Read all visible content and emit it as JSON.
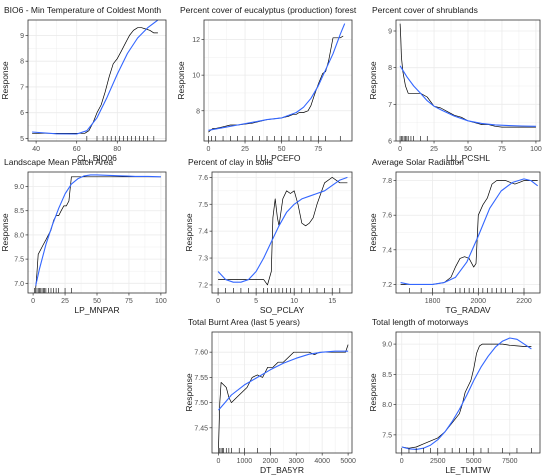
{
  "figure": {
    "y_axis_label": "Response",
    "colors": {
      "panel_border": "#333333",
      "grid": "#ebebeb",
      "observed_line": "#000000",
      "smooth_line": "#3366ff",
      "rug": "#000000",
      "tick_text": "#4d4d4d"
    }
  },
  "chart_data": [
    {
      "type": "line",
      "title": "BIO6 - Min Temperature of Coldest Month",
      "xlabel": "CL_BIO06",
      "ylabel": "Response",
      "xlim": [
        36,
        104
      ],
      "ylim": [
        4.9,
        9.6
      ],
      "xticks": [
        40,
        60,
        80
      ],
      "yticks": [
        5,
        6,
        7,
        8,
        9
      ],
      "grid": true,
      "series": [
        {
          "role": "observed",
          "x": [
            38,
            50,
            60,
            64,
            66,
            68,
            70,
            72,
            74,
            76,
            78,
            80,
            82,
            84,
            86,
            88,
            90,
            92,
            94,
            96,
            98,
            100
          ],
          "y": [
            5.2,
            5.2,
            5.2,
            5.2,
            5.3,
            5.6,
            6.0,
            6.3,
            6.8,
            7.4,
            7.9,
            8.1,
            8.4,
            8.7,
            9.0,
            9.2,
            9.3,
            9.3,
            9.25,
            9.2,
            9.1,
            9.1
          ]
        },
        {
          "role": "smooth",
          "x": [
            38,
            50,
            60,
            65,
            70,
            75,
            80,
            85,
            90,
            95,
            100
          ],
          "y": [
            5.25,
            5.18,
            5.17,
            5.3,
            5.8,
            6.6,
            7.5,
            8.3,
            8.9,
            9.3,
            9.6
          ]
        }
      ],
      "rug": [
        65,
        70,
        73,
        75,
        77,
        79,
        81,
        83,
        85,
        87,
        89,
        91,
        93,
        95,
        98
      ]
    },
    {
      "type": "line",
      "title": "Percent cover of eucalyptus (production) forest",
      "xlabel": "LU_PCEFO",
      "ylabel": "Response",
      "xlim": [
        -3,
        98
      ],
      "ylim": [
        6.3,
        13.1
      ],
      "xticks": [
        0,
        25,
        50,
        75
      ],
      "yticks": [
        8,
        10,
        12
      ],
      "grid": true,
      "series": [
        {
          "role": "observed",
          "x": [
            0,
            3,
            5,
            10,
            15,
            20,
            30,
            40,
            50,
            55,
            58,
            60,
            62,
            65,
            68,
            70,
            72,
            75,
            78,
            80,
            82,
            85,
            88,
            90,
            92
          ],
          "y": [
            6.8,
            7.0,
            7.0,
            7.1,
            7.2,
            7.2,
            7.3,
            7.5,
            7.6,
            7.7,
            7.8,
            7.8,
            7.9,
            7.9,
            8.0,
            8.3,
            8.8,
            9.5,
            10.1,
            10.2,
            10.8,
            12.1,
            12.1,
            12.1,
            12.2
          ]
        },
        {
          "role": "smooth",
          "x": [
            0,
            10,
            20,
            30,
            40,
            50,
            60,
            65,
            70,
            75,
            80,
            85,
            90,
            93
          ],
          "y": [
            6.9,
            7.05,
            7.2,
            7.35,
            7.5,
            7.6,
            7.9,
            8.2,
            8.7,
            9.4,
            10.3,
            11.2,
            12.3,
            12.9
          ]
        }
      ],
      "rug": [
        0,
        2,
        5,
        10,
        15,
        20,
        25,
        30,
        35,
        40,
        45,
        50,
        55,
        60,
        65,
        70,
        75,
        80,
        90
      ]
    },
    {
      "type": "line",
      "title": "Percent cover of shrublands",
      "xlabel": "LU_PCSHL",
      "ylabel": "Response",
      "xlim": [
        -3,
        103
      ],
      "ylim": [
        6.0,
        9.3
      ],
      "xticks": [
        0,
        25,
        50,
        75,
        100
      ],
      "yticks": [
        6,
        7,
        8,
        9
      ],
      "grid": true,
      "series": [
        {
          "role": "observed",
          "x": [
            0,
            0.5,
            1,
            2,
            4,
            6,
            8,
            10,
            15,
            20,
            25,
            30,
            35,
            40,
            45,
            50,
            55,
            60,
            65,
            70,
            75,
            80,
            85,
            90,
            95,
            100
          ],
          "y": [
            9.2,
            8.8,
            8.3,
            7.9,
            7.5,
            7.3,
            7.3,
            7.3,
            7.3,
            7.2,
            6.95,
            6.9,
            6.8,
            6.7,
            6.65,
            6.55,
            6.5,
            6.45,
            6.45,
            6.4,
            6.38,
            6.38,
            6.38,
            6.38,
            6.38,
            6.38
          ]
        },
        {
          "role": "smooth",
          "x": [
            0,
            5,
            10,
            15,
            20,
            25,
            30,
            40,
            50,
            60,
            70,
            80,
            90,
            100
          ],
          "y": [
            8.05,
            7.75,
            7.5,
            7.3,
            7.1,
            6.95,
            6.85,
            6.68,
            6.55,
            6.48,
            6.44,
            6.42,
            6.41,
            6.4
          ]
        }
      ],
      "rug": [
        0,
        1,
        2,
        3,
        4,
        5,
        6,
        8,
        10,
        15,
        20
      ]
    },
    {
      "type": "line",
      "title": "Landscape Mean Patch Area",
      "xlabel": "LP_MNPAR",
      "ylabel": "Response",
      "xlim": [
        -4,
        104
      ],
      "ylim": [
        6.8,
        9.3
      ],
      "xticks": [
        0,
        25,
        50,
        75,
        100
      ],
      "yticks": [
        7.0,
        7.5,
        8.0,
        8.5,
        9.0
      ],
      "grid": true,
      "series": [
        {
          "role": "observed",
          "x": [
            2,
            3,
            4,
            6,
            8,
            10,
            12,
            14,
            16,
            18,
            20,
            22,
            24,
            26,
            28,
            30,
            35,
            40,
            50,
            60,
            70,
            80,
            90,
            100
          ],
          "y": [
            6.9,
            7.2,
            7.6,
            7.7,
            7.8,
            7.9,
            8.0,
            8.1,
            8.3,
            8.4,
            8.4,
            8.5,
            8.6,
            8.6,
            8.7,
            9.2,
            9.2,
            9.2,
            9.2,
            9.2,
            9.2,
            9.2,
            9.2,
            9.2
          ]
        },
        {
          "role": "smooth",
          "x": [
            2,
            5,
            10,
            15,
            20,
            25,
            30,
            35,
            40,
            45,
            50,
            60,
            70,
            80,
            90,
            100
          ],
          "y": [
            6.95,
            7.3,
            7.8,
            8.2,
            8.55,
            8.85,
            9.05,
            9.16,
            9.22,
            9.24,
            9.24,
            9.23,
            9.22,
            9.21,
            9.21,
            9.2
          ]
        }
      ],
      "rug": [
        1,
        2,
        3,
        4,
        5,
        6,
        7,
        8,
        9,
        10,
        12,
        14,
        16,
        18,
        20,
        25,
        30
      ]
    },
    {
      "type": "line",
      "title": "Percent of clay in soils",
      "xlabel": "SO_PCLAY",
      "ylabel": "Response",
      "xlim": [
        -0.8,
        17.6
      ],
      "ylim": [
        7.17,
        7.62
      ],
      "xticks": [
        0,
        5,
        10,
        15
      ],
      "yticks": [
        7.2,
        7.3,
        7.4,
        7.5,
        7.6
      ],
      "grid": true,
      "series": [
        {
          "role": "observed",
          "x": [
            0,
            1,
            2,
            3,
            4,
            5,
            6,
            6.5,
            7,
            7.2,
            7.5,
            7.8,
            8,
            8.5,
            9,
            9.5,
            10,
            10.5,
            11,
            11.5,
            12,
            12.5,
            13,
            14,
            15,
            16,
            17
          ],
          "y": [
            7.22,
            7.22,
            7.22,
            7.22,
            7.22,
            7.22,
            7.22,
            7.2,
            7.25,
            7.45,
            7.52,
            7.45,
            7.42,
            7.52,
            7.55,
            7.54,
            7.55,
            7.5,
            7.43,
            7.42,
            7.43,
            7.45,
            7.5,
            7.58,
            7.6,
            7.58,
            7.58
          ]
        },
        {
          "role": "smooth",
          "x": [
            0,
            1,
            2,
            3,
            4,
            5,
            6,
            7,
            8,
            9,
            10,
            11,
            12,
            13,
            14,
            15,
            16,
            17
          ],
          "y": [
            7.25,
            7.22,
            7.21,
            7.21,
            7.22,
            7.25,
            7.3,
            7.36,
            7.42,
            7.47,
            7.5,
            7.52,
            7.53,
            7.54,
            7.55,
            7.57,
            7.59,
            7.6
          ]
        }
      ],
      "rug": [
        0,
        1,
        2,
        3,
        4,
        5,
        6,
        6.5,
        7,
        7.5,
        8,
        8.5,
        9,
        9.5,
        10,
        11,
        12,
        13,
        14,
        15,
        16
      ]
    },
    {
      "type": "line",
      "title": "Average Solar Radiation",
      "xlabel": "TG_RADAV",
      "ylabel": "Response",
      "xlim": [
        1640,
        2270
      ],
      "ylim": [
        7.15,
        7.85
      ],
      "xticks": [
        1800,
        2000,
        2200
      ],
      "yticks": [
        7.2,
        7.4,
        7.6,
        7.8
      ],
      "grid": true,
      "series": [
        {
          "role": "observed",
          "x": [
            1660,
            1700,
            1750,
            1800,
            1850,
            1880,
            1900,
            1920,
            1940,
            1960,
            1980,
            1990,
            2000,
            2020,
            2040,
            2060,
            2080,
            2100,
            2120,
            2140,
            2160,
            2180,
            2200,
            2220,
            2240,
            2260
          ],
          "y": [
            7.2,
            7.2,
            7.2,
            7.2,
            7.21,
            7.24,
            7.3,
            7.35,
            7.36,
            7.35,
            7.3,
            7.32,
            7.6,
            7.66,
            7.7,
            7.78,
            7.8,
            7.8,
            7.8,
            7.79,
            7.78,
            7.79,
            7.8,
            7.8,
            7.8,
            7.8
          ]
        },
        {
          "role": "smooth",
          "x": [
            1660,
            1700,
            1750,
            1800,
            1850,
            1900,
            1950,
            2000,
            2050,
            2100,
            2150,
            2200,
            2230,
            2260
          ],
          "y": [
            7.21,
            7.2,
            7.2,
            7.2,
            7.21,
            7.24,
            7.33,
            7.48,
            7.64,
            7.74,
            7.79,
            7.81,
            7.8,
            7.77
          ]
        }
      ],
      "rug": [
        1700,
        1750,
        1800,
        1850,
        1900,
        1920,
        1940,
        1960,
        1980,
        2000,
        2020,
        2040,
        2060,
        2080,
        2100,
        2120,
        2150,
        2200
      ]
    },
    {
      "type": "line",
      "title": "Total Burnt Area (last 5 years)",
      "xlabel": "DT_BA5YR",
      "ylabel": "Response",
      "xlim": [
        -250,
        5150
      ],
      "ylim": [
        7.4,
        7.64
      ],
      "xticks": [
        0,
        1000,
        2000,
        3000,
        4000,
        5000
      ],
      "yticks": [
        7.45,
        7.5,
        7.55,
        7.6
      ],
      "grid": true,
      "series": [
        {
          "role": "observed",
          "x": [
            0,
            50,
            100,
            200,
            300,
            400,
            500,
            700,
            900,
            1100,
            1300,
            1500,
            1700,
            1900,
            2100,
            2300,
            2500,
            2700,
            2900,
            3100,
            3300,
            3500,
            3700,
            3900,
            4100,
            4300,
            4500,
            4700,
            4900,
            5000
          ],
          "y": [
            7.41,
            7.5,
            7.54,
            7.535,
            7.53,
            7.51,
            7.5,
            7.51,
            7.52,
            7.53,
            7.55,
            7.555,
            7.55,
            7.57,
            7.57,
            7.58,
            7.58,
            7.59,
            7.6,
            7.6,
            7.6,
            7.6,
            7.595,
            7.6,
            7.6,
            7.6,
            7.6,
            7.6,
            7.6,
            7.615
          ]
        },
        {
          "role": "smooth",
          "x": [
            0,
            250,
            500,
            1000,
            1500,
            2000,
            2500,
            3000,
            3500,
            4000,
            4500,
            5000
          ],
          "y": [
            7.485,
            7.5,
            7.515,
            7.535,
            7.55,
            7.565,
            7.578,
            7.588,
            7.596,
            7.6,
            7.602,
            7.602
          ]
        }
      ],
      "rug": [
        0,
        50,
        100,
        150,
        200,
        300,
        400,
        500,
        800,
        1000,
        1500,
        2000
      ]
    },
    {
      "type": "line",
      "title": "Total length of motorways",
      "xlabel": "LE_TLMTW",
      "ylabel": "Response",
      "xlim": [
        -400,
        9600
      ],
      "ylim": [
        7.2,
        9.2
      ],
      "xticks": [
        0,
        2500,
        5000,
        7500
      ],
      "yticks": [
        7.5,
        8.0,
        8.5,
        9.0
      ],
      "grid": true,
      "series": [
        {
          "role": "observed",
          "x": [
            0,
            500,
            1000,
            1500,
            2000,
            2500,
            3000,
            3500,
            4000,
            4200,
            4400,
            4600,
            4800,
            5000,
            5200,
            5400,
            5600,
            6000,
            6500,
            7000,
            7500,
            8000,
            8500,
            9000
          ],
          "y": [
            7.3,
            7.28,
            7.3,
            7.35,
            7.4,
            7.45,
            7.55,
            7.7,
            7.85,
            8.0,
            8.2,
            8.3,
            8.4,
            8.6,
            8.85,
            8.97,
            9.0,
            9.0,
            9.0,
            9.0,
            8.98,
            8.97,
            8.96,
            8.96
          ]
        },
        {
          "role": "smooth",
          "x": [
            0,
            500,
            1000,
            1500,
            2000,
            2500,
            3000,
            3500,
            4000,
            4500,
            5000,
            5500,
            6000,
            6500,
            7000,
            7500,
            8000,
            8500,
            9000
          ],
          "y": [
            7.3,
            7.27,
            7.26,
            7.28,
            7.33,
            7.42,
            7.55,
            7.72,
            7.92,
            8.15,
            8.4,
            8.62,
            8.8,
            8.95,
            9.05,
            9.1,
            9.08,
            9.0,
            8.92
          ]
        }
      ],
      "rug": [
        0,
        500,
        1000,
        1500,
        2000,
        2500,
        3000,
        3500,
        4000,
        4500,
        5000,
        5500,
        6000,
        7000,
        8000,
        9000
      ]
    }
  ]
}
